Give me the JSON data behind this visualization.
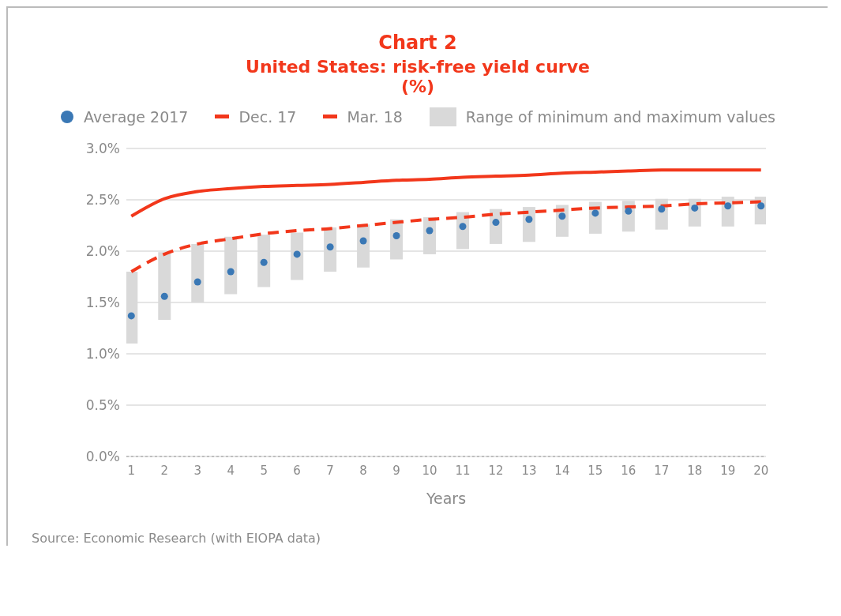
{
  "chart_data": {
    "type": "line",
    "title": "Chart 2",
    "subtitle": "United States: risk-free yield curve\n(%)",
    "xlabel": "Years",
    "x": [
      1,
      2,
      3,
      4,
      5,
      6,
      7,
      8,
      9,
      10,
      11,
      12,
      13,
      14,
      15,
      16,
      17,
      18,
      19,
      20
    ],
    "xlim": [
      0.85,
      20.15
    ],
    "xticks": [
      1,
      2,
      3,
      4,
      5,
      6,
      7,
      8,
      9,
      10,
      11,
      12,
      13,
      14,
      15,
      16,
      17,
      18,
      19,
      20
    ],
    "series": [
      {
        "name": "Average 2017",
        "type": "scatter",
        "marker": "circle",
        "color": "#3a78b5",
        "values": [
          1.37,
          1.56,
          1.7,
          1.8,
          1.89,
          1.97,
          2.04,
          2.1,
          2.15,
          2.2,
          2.24,
          2.28,
          2.31,
          2.34,
          2.37,
          2.39,
          2.41,
          2.42,
          2.44,
          2.44
        ]
      },
      {
        "name": "Dec. 17",
        "line_style": "dashed",
        "color": "#f2371b",
        "values": [
          1.8,
          1.97,
          2.07,
          2.12,
          2.17,
          2.2,
          2.22,
          2.25,
          2.28,
          2.31,
          2.33,
          2.36,
          2.38,
          2.4,
          2.42,
          2.43,
          2.44,
          2.46,
          2.47,
          2.48
        ]
      },
      {
        "name": "Mar. 18",
        "line_style": "solid",
        "color": "#f2371b",
        "values": [
          2.34,
          2.51,
          2.58,
          2.61,
          2.63,
          2.64,
          2.65,
          2.67,
          2.69,
          2.7,
          2.72,
          2.73,
          2.74,
          2.76,
          2.77,
          2.78,
          2.79,
          2.79,
          2.79,
          2.79
        ]
      },
      {
        "name": "Range of minimum and maximum values",
        "type": "bar",
        "color": "#d9d9d9",
        "base": [
          1.1,
          1.33,
          1.5,
          1.58,
          1.65,
          1.72,
          1.8,
          1.84,
          1.92,
          1.97,
          2.02,
          2.07,
          2.09,
          2.14,
          2.17,
          2.19,
          2.21,
          2.24,
          2.24,
          2.26
        ],
        "values": [
          0.7,
          0.66,
          0.57,
          0.56,
          0.51,
          0.46,
          0.43,
          0.42,
          0.39,
          0.36,
          0.36,
          0.34,
          0.34,
          0.31,
          0.31,
          0.3,
          0.3,
          0.27,
          0.29,
          0.27
        ]
      }
    ],
    "ylim": [
      0,
      3
    ],
    "yticks": [
      {
        "value": 0,
        "label": "0.0%"
      },
      {
        "value": 0.5,
        "label": "0.5%"
      },
      {
        "value": 1,
        "label": "1.0%"
      },
      {
        "value": 1.5,
        "label": "1.5%"
      },
      {
        "value": 2,
        "label": "2.0%"
      },
      {
        "value": 2.5,
        "label": "2.5%"
      },
      {
        "value": 3,
        "label": "3.0%"
      }
    ],
    "grid": "y",
    "legend": "top",
    "annotations": [
      "Source: Economic Research (with EIOPA data)"
    ]
  }
}
